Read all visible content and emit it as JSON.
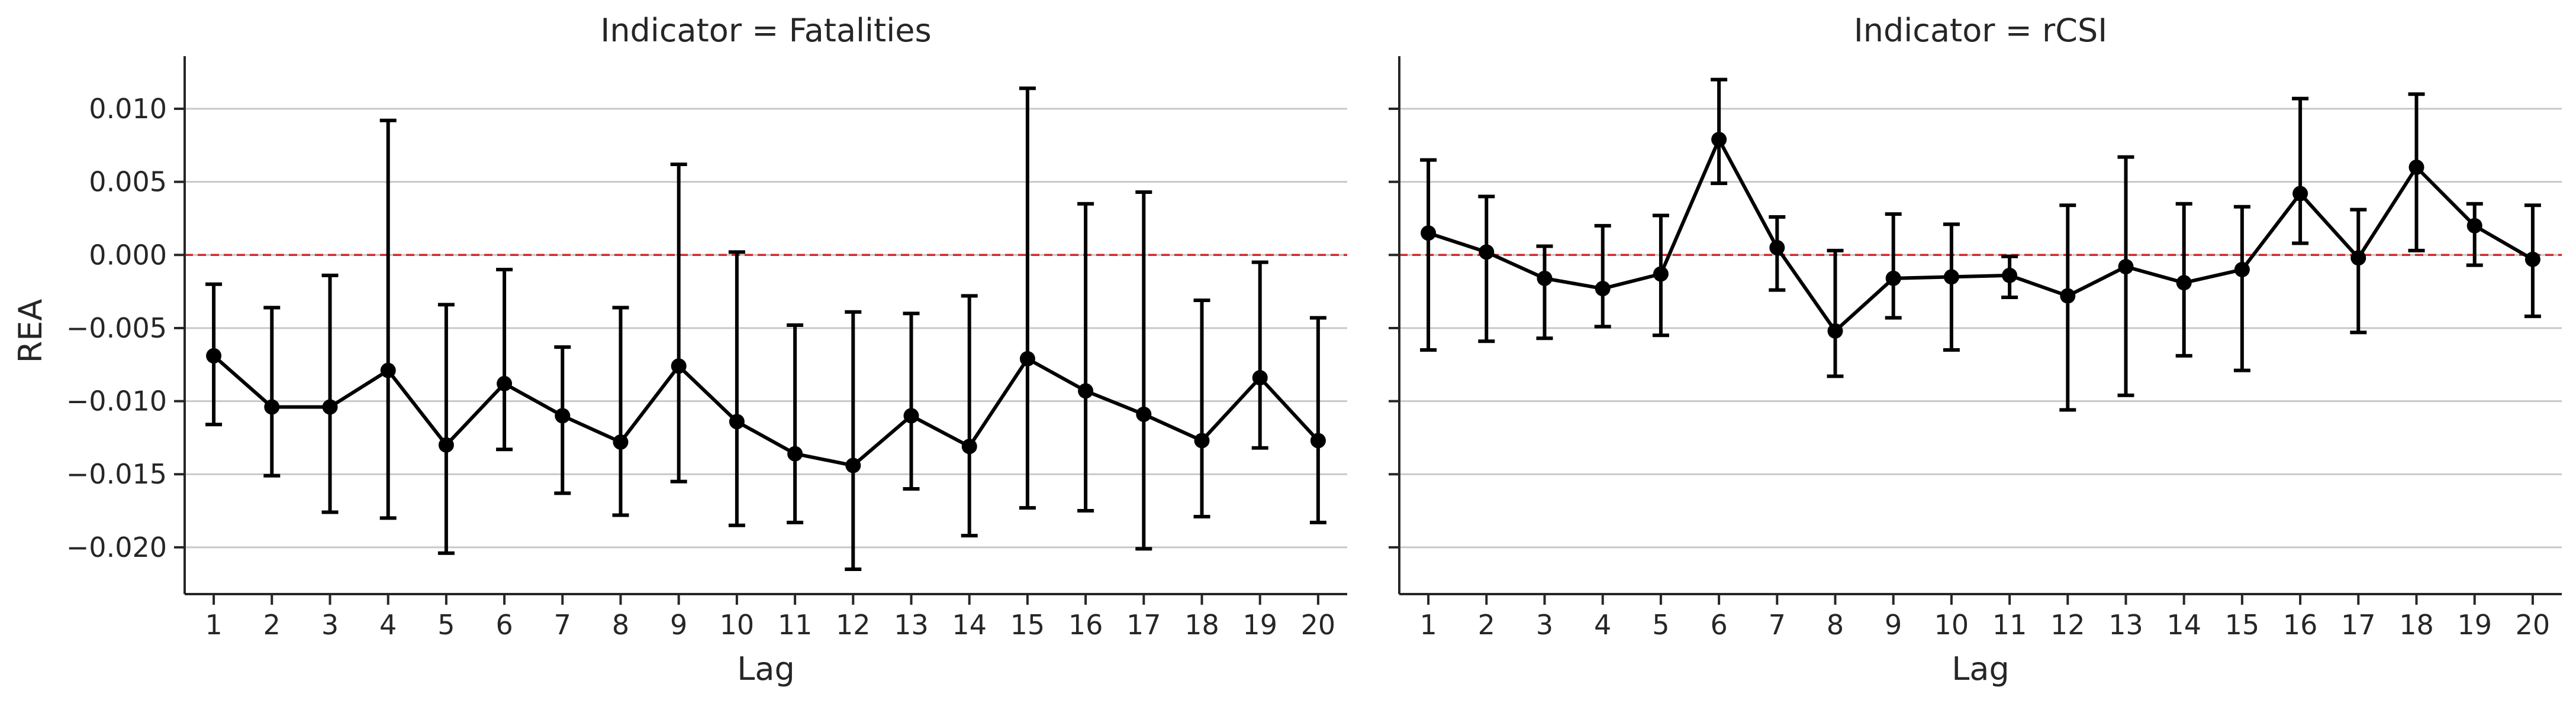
{
  "figure": {
    "ylabel": "REA",
    "zero_line_color": "#d62728",
    "series_color": "#000000",
    "grid_color": "#c8c8c8"
  },
  "chart_data": [
    {
      "type": "line",
      "title": "Indicator = Fatalities",
      "xlabel": "Lag",
      "ylabel": "REA",
      "x": [
        1,
        2,
        3,
        4,
        5,
        6,
        7,
        8,
        9,
        10,
        11,
        12,
        13,
        14,
        15,
        16,
        17,
        18,
        19,
        20
      ],
      "x_tick_labels": [
        "1",
        "2",
        "3",
        "4",
        "5",
        "6",
        "7",
        "8",
        "9",
        "10",
        "11",
        "12",
        "13",
        "14",
        "15",
        "16",
        "17",
        "18",
        "19",
        "20"
      ],
      "y_ticks": [
        -0.02,
        -0.015,
        -0.01,
        -0.005,
        0.0,
        0.005,
        0.01
      ],
      "y_tick_labels": [
        "−0.020",
        "−0.015",
        "−0.010",
        "−0.005",
        "0.000",
        "0.005",
        "0.010"
      ],
      "ylim": [
        -0.0232,
        0.0136
      ],
      "grid": "horizontal",
      "reference_line": 0.0,
      "series": [
        {
          "values": [
            -0.0069,
            -0.0104,
            -0.0104,
            -0.0079,
            -0.013,
            -0.0088,
            -0.011,
            -0.0128,
            -0.0076,
            -0.0114,
            -0.0136,
            -0.0144,
            -0.011,
            -0.0131,
            -0.0071,
            -0.0093,
            -0.0109,
            -0.0127,
            -0.0084,
            -0.0127
          ],
          "ci_lower": [
            -0.0116,
            -0.0151,
            -0.0176,
            -0.018,
            -0.0204,
            -0.0133,
            -0.0163,
            -0.0178,
            -0.0155,
            -0.0185,
            -0.0183,
            -0.0215,
            -0.016,
            -0.0192,
            -0.0173,
            -0.0175,
            -0.0201,
            -0.0179,
            -0.0132,
            -0.0183
          ],
          "ci_upper": [
            -0.002,
            -0.0036,
            -0.0014,
            0.0092,
            -0.0034,
            -0.001,
            -0.0063,
            -0.0036,
            0.0062,
            0.0002,
            -0.0048,
            -0.0039,
            -0.004,
            -0.0028,
            0.0114,
            0.0035,
            0.0043,
            -0.0031,
            -0.0005,
            -0.0043
          ]
        }
      ]
    },
    {
      "type": "line",
      "title": "Indicator = rCSI",
      "xlabel": "Lag",
      "ylabel": "",
      "x": [
        1,
        2,
        3,
        4,
        5,
        6,
        7,
        8,
        9,
        10,
        11,
        12,
        13,
        14,
        15,
        16,
        17,
        18,
        19,
        20
      ],
      "x_tick_labels": [
        "1",
        "2",
        "3",
        "4",
        "5",
        "6",
        "7",
        "8",
        "9",
        "10",
        "11",
        "12",
        "13",
        "14",
        "15",
        "16",
        "17",
        "18",
        "19",
        "20"
      ],
      "y_ticks": [
        -0.02,
        -0.015,
        -0.01,
        -0.005,
        0.0,
        0.005,
        0.01
      ],
      "ylim": [
        -0.0232,
        0.0136
      ],
      "grid": "horizontal",
      "reference_line": 0.0,
      "series": [
        {
          "values": [
            0.0015,
            0.0002,
            -0.0016,
            -0.0023,
            -0.0013,
            0.0079,
            0.0005,
            -0.0052,
            -0.0016,
            -0.0015,
            -0.0014,
            -0.0028,
            -0.0008,
            -0.0019,
            -0.001,
            0.0042,
            -0.0002,
            0.006,
            0.002,
            -0.0003
          ],
          "ci_lower": [
            -0.0065,
            -0.0059,
            -0.0057,
            -0.0049,
            -0.0055,
            0.0049,
            -0.0024,
            -0.0083,
            -0.0043,
            -0.0065,
            -0.0029,
            -0.0106,
            -0.0096,
            -0.0069,
            -0.0079,
            0.0008,
            -0.0053,
            0.0003,
            -0.0007,
            -0.0042
          ],
          "ci_upper": [
            0.0065,
            0.004,
            0.0006,
            0.002,
            0.0027,
            0.012,
            0.0026,
            0.0003,
            0.0028,
            0.0021,
            -0.0001,
            0.0034,
            0.0067,
            0.0035,
            0.0033,
            0.0107,
            0.0031,
            0.011,
            0.0035,
            0.0034
          ]
        }
      ]
    }
  ]
}
